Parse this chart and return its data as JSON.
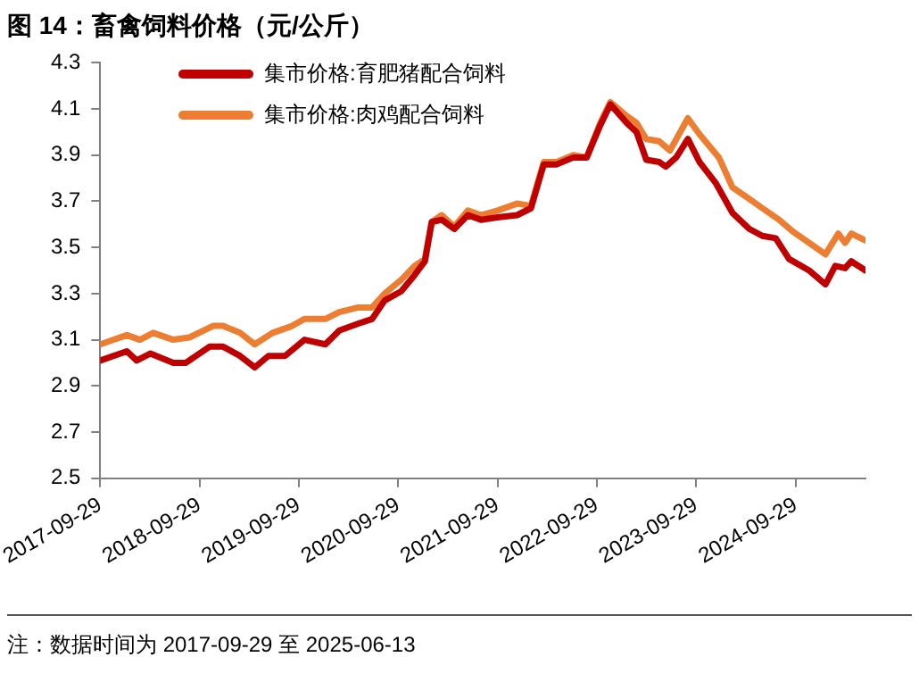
{
  "chart_data": {
    "type": "line",
    "title": "图 14：畜禽饲料价格（元/公斤）",
    "annotations": [
      "注：数据时间为 2017-09-29 至 2025-06-13"
    ],
    "xlim": [
      "2017-09-29",
      "2025-06-13"
    ],
    "xticks": [
      "2017-09-29",
      "2018-09-29",
      "2019-09-29",
      "2020-09-29",
      "2021-09-29",
      "2022-09-29",
      "2023-09-29",
      "2024-09-29"
    ],
    "ylim": [
      2.5,
      4.3
    ],
    "yticks": [
      2.5,
      2.7,
      2.9,
      3.1,
      3.3,
      3.5,
      3.7,
      3.9,
      4.1,
      4.3
    ],
    "grid": false,
    "legend": "top left",
    "marker": "none",
    "line_style": "solid",
    "series": [
      {
        "name": "集市价格:育肥猪配合饲料",
        "color": "#c00000",
        "x": [
          "2017-09-29",
          "2018-01-05",
          "2018-02-10",
          "2018-04-01",
          "2018-06-25",
          "2018-08-10",
          "2018-11-05",
          "2018-12-25",
          "2019-02-25",
          "2019-04-20",
          "2019-06-10",
          "2019-08-10",
          "2019-10-20",
          "2020-01-05",
          "2020-02-25",
          "2020-05-05",
          "2020-06-25",
          "2020-08-10",
          "2020-10-10",
          "2020-11-28",
          "2021-01-05",
          "2021-01-30",
          "2021-03-08",
          "2021-04-23",
          "2021-06-12",
          "2021-07-30",
          "2021-09-29",
          "2021-12-10",
          "2022-01-30",
          "2022-03-18",
          "2022-05-05",
          "2022-07-05",
          "2022-08-23",
          "2022-10-12",
          "2022-11-18",
          "2023-01-17",
          "2023-02-22",
          "2023-03-30",
          "2023-05-17",
          "2023-06-10",
          "2023-07-18",
          "2023-08-30",
          "2023-10-12",
          "2023-12-10",
          "2024-02-10",
          "2024-04-12",
          "2024-05-30",
          "2024-07-18",
          "2024-09-05",
          "2024-11-18",
          "2025-01-17",
          "2025-02-22",
          "2025-03-30",
          "2025-04-22",
          "2025-06-13"
        ],
        "values": [
          3.01,
          3.05,
          3.01,
          3.04,
          3.0,
          3.0,
          3.07,
          3.07,
          3.03,
          2.98,
          3.03,
          3.03,
          3.1,
          3.08,
          3.14,
          3.17,
          3.19,
          3.27,
          3.31,
          3.38,
          3.44,
          3.61,
          3.62,
          3.58,
          3.64,
          3.62,
          3.63,
          3.64,
          3.67,
          3.86,
          3.86,
          3.89,
          3.89,
          4.03,
          4.12,
          4.04,
          4.0,
          3.88,
          3.87,
          3.85,
          3.89,
          3.97,
          3.87,
          3.78,
          3.65,
          3.58,
          3.55,
          3.54,
          3.45,
          3.4,
          3.34,
          3.42,
          3.41,
          3.44,
          3.4
        ]
      },
      {
        "name": "集市价格:肉鸡配合饲料",
        "color": "#ed7d31",
        "x": [
          "2017-09-29",
          "2018-01-05",
          "2018-02-22",
          "2018-04-12",
          "2018-06-25",
          "2018-08-23",
          "2018-11-18",
          "2018-12-25",
          "2019-02-25",
          "2019-04-20",
          "2019-06-25",
          "2019-09-05",
          "2019-10-20",
          "2020-01-05",
          "2020-02-25",
          "2020-05-05",
          "2020-06-25",
          "2020-08-10",
          "2020-10-10",
          "2020-11-28",
          "2021-01-05",
          "2021-01-30",
          "2021-03-08",
          "2021-04-23",
          "2021-06-12",
          "2021-07-30",
          "2021-09-29",
          "2021-12-10",
          "2022-01-30",
          "2022-03-18",
          "2022-05-05",
          "2022-07-05",
          "2022-08-23",
          "2022-10-12",
          "2022-11-18",
          "2023-01-17",
          "2023-02-22",
          "2023-03-30",
          "2023-05-17",
          "2023-06-25",
          "2023-08-30",
          "2023-10-12",
          "2023-12-22",
          "2024-02-10",
          "2024-04-12",
          "2024-05-30",
          "2024-07-30",
          "2024-09-18",
          "2024-11-18",
          "2025-01-17",
          "2025-03-05",
          "2025-03-30",
          "2025-04-22",
          "2025-06-13"
        ],
        "values": [
          3.08,
          3.12,
          3.1,
          3.13,
          3.1,
          3.11,
          3.16,
          3.16,
          3.13,
          3.08,
          3.13,
          3.16,
          3.19,
          3.19,
          3.22,
          3.24,
          3.24,
          3.3,
          3.36,
          3.42,
          3.45,
          3.61,
          3.64,
          3.59,
          3.66,
          3.64,
          3.66,
          3.69,
          3.68,
          3.87,
          3.87,
          3.9,
          3.89,
          4.04,
          4.13,
          4.07,
          4.04,
          3.97,
          3.96,
          3.92,
          4.06,
          3.99,
          3.89,
          3.76,
          3.71,
          3.67,
          3.62,
          3.57,
          3.52,
          3.47,
          3.56,
          3.52,
          3.56,
          3.53
        ]
      }
    ]
  }
}
